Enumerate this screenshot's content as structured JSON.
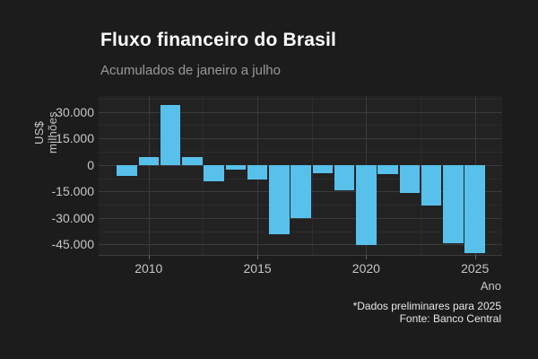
{
  "chart_data": {
    "type": "bar",
    "title": "Fluxo financeiro do Brasil",
    "subtitle": "Acumulados de janeiro a julho",
    "xlabel": "Ano",
    "ylabel": "US$ milhões",
    "categories": [
      2009,
      2010,
      2011,
      2012,
      2013,
      2014,
      2015,
      2016,
      2017,
      2018,
      2019,
      2020,
      2021,
      2022,
      2023,
      2024,
      2025
    ],
    "values": [
      -6100,
      4400,
      33800,
      4700,
      -9000,
      -2700,
      -8100,
      -39400,
      -30300,
      -4500,
      -14300,
      -45300,
      -5200,
      -15700,
      -22800,
      -44100,
      -50000
    ],
    "unit": "US$ milhões",
    "xlim": [
      2007.7,
      2026.25
    ],
    "ylim": [
      -50900,
      39000
    ],
    "x_major_ticks": [
      2010,
      2015,
      2020,
      2025
    ],
    "x_tick_labels": [
      "2010",
      "2015",
      "2020",
      "2025"
    ],
    "x_minor_ticks": [
      2007.5,
      2012.5,
      2017.5,
      2022.5
    ],
    "y_major_ticks": [
      30000,
      15000,
      0,
      -15000,
      -30000,
      -45000
    ],
    "y_tick_labels": [
      "30.000",
      "15.000",
      "0",
      "-15.000",
      "-30.000",
      "-45.000"
    ],
    "y_minor_ticks": [
      37500,
      22500,
      7500,
      -7500,
      -22500,
      -37500
    ],
    "grid": true,
    "legend": false
  },
  "footer": {
    "note": "*Dados preliminares para 2025",
    "source": "Fonte: Banco Central"
  },
  "colors": {
    "background": "#1c1c1c",
    "panel": "#222222",
    "bar": "#57c1ec",
    "grid_major": "#3b3b3b",
    "grid_minor": "#2c2c2c",
    "title_text": "#ffffff",
    "subtitle_text": "#999999",
    "axis_text": "#c6c6c6",
    "footer_text": "#e8e8e8"
  }
}
